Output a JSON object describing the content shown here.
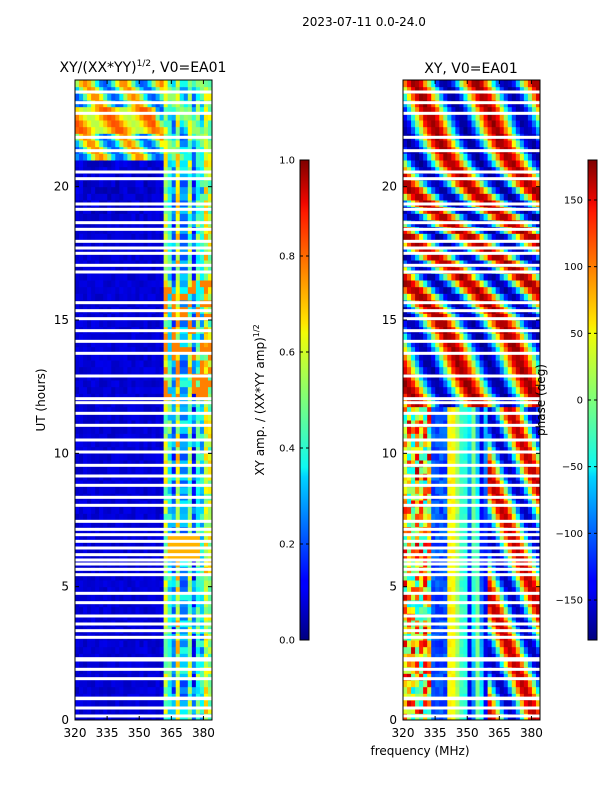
{
  "page_title": "2023-07-11 0.0-24.0",
  "chart_data": [
    {
      "type": "heatmap",
      "title": "XY/(XX*YY)",
      "title_exponent": "1/2",
      "title_suffix": ", V0=EA01",
      "xlabel": "frequency (MHz)",
      "ylabel": "UT (hours)",
      "xlim": [
        320,
        384
      ],
      "ylim": [
        0,
        24
      ],
      "xticks": [
        320,
        335,
        350,
        365,
        380
      ],
      "yticks": [
        0,
        5,
        10,
        15,
        20
      ],
      "colorbar": {
        "label": "XY amp. / (XX*YY amp)",
        "label_exponent": "1/2",
        "range": [
          0.0,
          1.0
        ],
        "ticks": [
          "0.0",
          "0.2",
          "0.4",
          "0.6",
          "0.8",
          "1.0"
        ],
        "colormap": "jet"
      },
      "flagged_hours": [
        0.15,
        0.45,
        0.8,
        0.82,
        1.55,
        1.9,
        2.25,
        2.3,
        3.1,
        3.35,
        3.6,
        3.9,
        4.4,
        4.75,
        5.45,
        5.65,
        5.85,
        6.0,
        6.2,
        6.45,
        6.7,
        6.95,
        7.15,
        7.45,
        8.05,
        8.35,
        8.8,
        9.15,
        9.55,
        10.05,
        10.5,
        11.05,
        11.5,
        11.9,
        12.05,
        12.9,
        13.75,
        14.2,
        14.6,
        15.05,
        15.35,
        15.65,
        16.8,
        17.05,
        17.5,
        17.7,
        17.95,
        18.4,
        18.65,
        19.15,
        19.35,
        20.3,
        20.55,
        21.35,
        21.85,
        22.75,
        23.15,
        23.55
      ]
    },
    {
      "type": "heatmap",
      "title": "XY, V0=EA01",
      "xlabel": "frequency (MHz)",
      "ylabel": "",
      "xlim": [
        320,
        384
      ],
      "ylim": [
        0,
        24
      ],
      "xticks": [
        320,
        335,
        350,
        365,
        380
      ],
      "yticks": [
        0,
        5,
        10,
        15,
        20
      ],
      "colorbar": {
        "label": "phase (deg)",
        "range": [
          -180,
          180
        ],
        "ticks": [
          "150",
          "100",
          "50",
          "0",
          "−50",
          "−100",
          "−150"
        ],
        "tick_values": [
          150,
          100,
          50,
          0,
          -50,
          -100,
          -150
        ],
        "colormap": "jet"
      },
      "flagged_hours": [
        0.15,
        0.45,
        0.8,
        0.82,
        1.55,
        1.9,
        2.25,
        2.3,
        3.1,
        3.35,
        3.6,
        3.9,
        4.4,
        4.75,
        5.45,
        5.65,
        5.85,
        6.0,
        6.2,
        6.45,
        6.7,
        6.95,
        7.15,
        7.45,
        8.05,
        8.35,
        8.8,
        9.15,
        9.55,
        10.05,
        10.5,
        11.05,
        11.5,
        11.9,
        12.05,
        12.9,
        13.75,
        14.2,
        14.6,
        15.05,
        15.35,
        15.65,
        16.8,
        17.05,
        17.5,
        17.7,
        17.95,
        18.4,
        18.65,
        19.15,
        19.35,
        20.3,
        20.55,
        21.35,
        21.85,
        22.75,
        23.15,
        23.55
      ]
    }
  ]
}
